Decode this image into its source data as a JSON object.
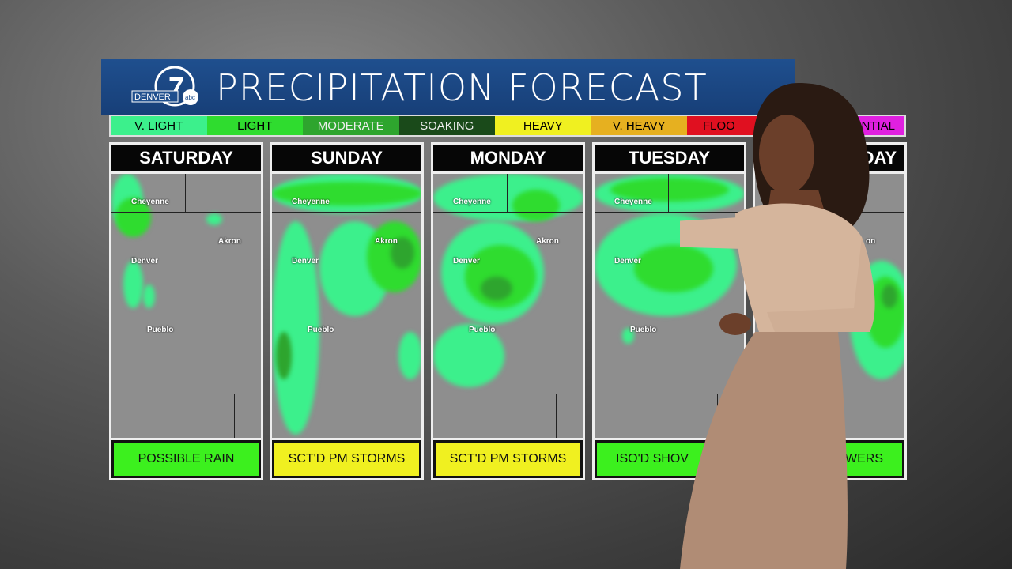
{
  "header": {
    "title": "PRECIPITATION FORECAST",
    "logo_text": "DENVER 7 abc"
  },
  "legend": [
    {
      "label": "V. LIGHT",
      "color": "#3cf08c",
      "text": "#111"
    },
    {
      "label": "LIGHT",
      "color": "#2fdc2f",
      "text": "#111"
    },
    {
      "label": "MODERATE",
      "color": "#2ea52e",
      "text": "#eee"
    },
    {
      "label": "SOAKING",
      "color": "#1a4a1a",
      "text": "#eee"
    },
    {
      "label": "HEAVY",
      "color": "#f0f020",
      "text": "#111"
    },
    {
      "label": "V. HEAVY",
      "color": "#e6b020",
      "text": "#111"
    },
    {
      "label": "FLOO",
      "color": "#e01020",
      "text": "#111"
    },
    {
      "label": "RENTIAL",
      "color": "#e020e0",
      "text": "#111"
    }
  ],
  "panels": [
    {
      "day": "SATURDAY",
      "label": "POSSIBLE RAIN",
      "label_color": "#3cf01e"
    },
    {
      "day": "SUNDAY",
      "label": "SCT'D PM STORMS",
      "label_color": "#f0f020"
    },
    {
      "day": "MONDAY",
      "label": "SCT'D PM STORMS",
      "label_color": "#f0f020"
    },
    {
      "day": "TUESDAY",
      "label": "ISO'D SHOV",
      "label_color": "#3cf01e"
    },
    {
      "day": "SDAY",
      "label": "WERS",
      "label_color": "#3cf01e"
    }
  ],
  "cities": {
    "cheyenne": "Cheyenne",
    "akron": "Akron",
    "denver": "Denver",
    "pueblo": "Pueblo",
    "akron_partial": "on"
  }
}
